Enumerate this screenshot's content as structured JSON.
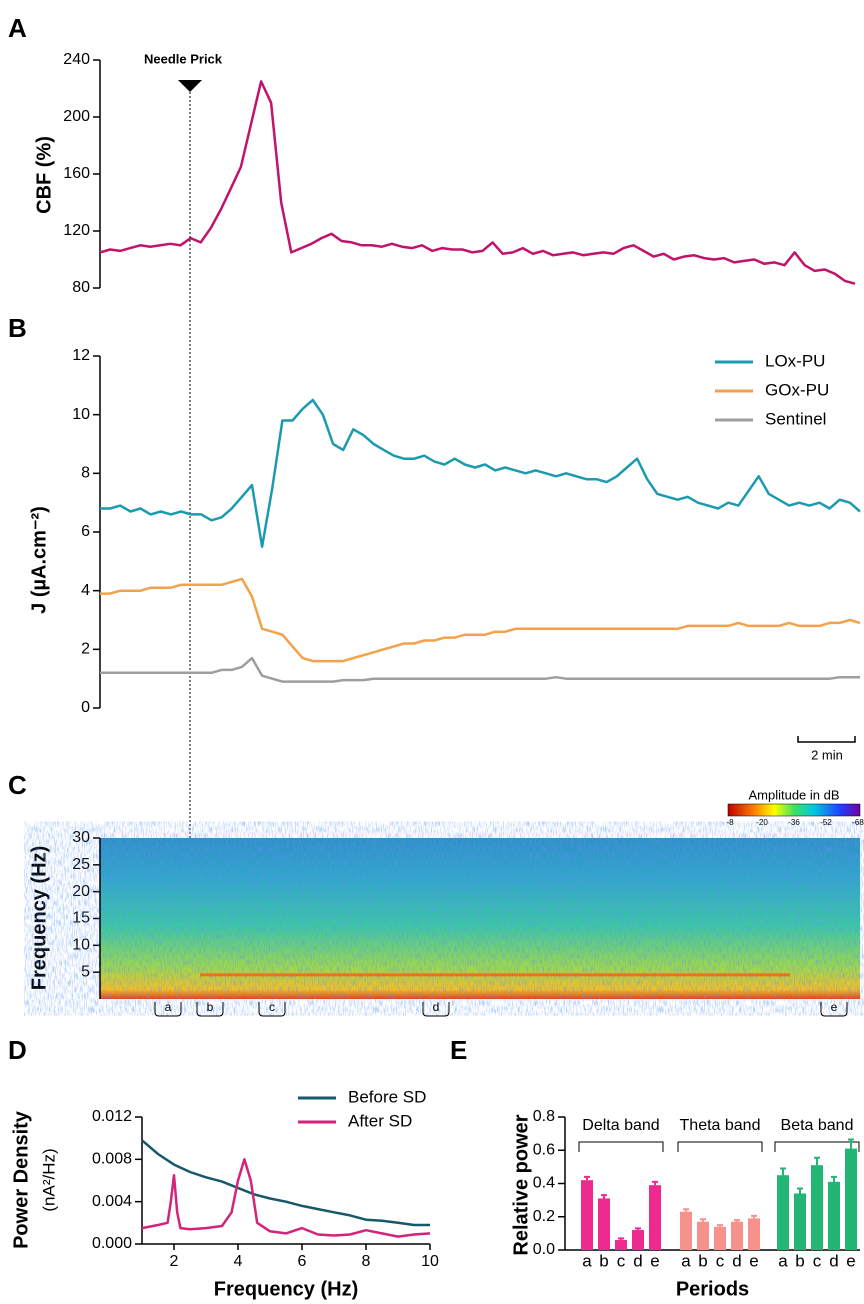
{
  "chart_data": [
    {
      "type": "line",
      "panel": "A",
      "ylabel": "CBF (%)",
      "annotation": "Needle Prick",
      "color": "#c0136b",
      "ylim": [
        80,
        240
      ],
      "yticks": [
        80,
        120,
        160,
        200,
        240
      ],
      "values": [
        105,
        107,
        106,
        108,
        110,
        109,
        110,
        111,
        110,
        115,
        112,
        122,
        135,
        150,
        165,
        195,
        225,
        210,
        140,
        105,
        108,
        111,
        115,
        118,
        113,
        112,
        110,
        110,
        109,
        111,
        109,
        108,
        110,
        106,
        108,
        107,
        107,
        105,
        106,
        112,
        104,
        105,
        108,
        104,
        106,
        103,
        104,
        105,
        103,
        104,
        105,
        104,
        108,
        110,
        106,
        102,
        104,
        100,
        102,
        103,
        101,
        100,
        101,
        98,
        99,
        100,
        97,
        98,
        96,
        105,
        96,
        92,
        93,
        90,
        85,
        83
      ]
    },
    {
      "type": "line",
      "panel": "B",
      "ylabel": "J (µA.cm⁻²)",
      "scale_bar": "2 min",
      "ylim": [
        0,
        12
      ],
      "yticks": [
        0,
        2,
        4,
        6,
        8,
        10,
        12
      ],
      "series": [
        {
          "name": "LOx-PU",
          "color": "#1c9aaf",
          "values": [
            6.8,
            6.8,
            6.9,
            6.7,
            6.8,
            6.6,
            6.7,
            6.6,
            6.7,
            6.6,
            6.6,
            6.4,
            6.5,
            6.8,
            7.2,
            7.6,
            5.5,
            7.5,
            9.8,
            9.8,
            10.2,
            10.5,
            10.0,
            9.0,
            8.8,
            9.5,
            9.3,
            9.0,
            8.8,
            8.6,
            8.5,
            8.5,
            8.6,
            8.4,
            8.3,
            8.5,
            8.3,
            8.2,
            8.3,
            8.1,
            8.2,
            8.1,
            8.0,
            8.1,
            8.0,
            7.9,
            8.0,
            7.9,
            7.8,
            7.8,
            7.7,
            7.9,
            8.2,
            8.5,
            7.8,
            7.3,
            7.2,
            7.1,
            7.2,
            7.0,
            6.9,
            6.8,
            7.0,
            6.9,
            7.4,
            7.9,
            7.3,
            7.1,
            6.9,
            7.0,
            6.9,
            7.0,
            6.8,
            7.1,
            7.0,
            6.7
          ]
        },
        {
          "name": "GOx-PU",
          "color": "#f4a14c",
          "values": [
            3.9,
            3.9,
            4.0,
            4.0,
            4.0,
            4.1,
            4.1,
            4.1,
            4.2,
            4.2,
            4.2,
            4.2,
            4.2,
            4.3,
            4.4,
            3.8,
            2.7,
            2.6,
            2.5,
            2.1,
            1.7,
            1.6,
            1.6,
            1.6,
            1.6,
            1.7,
            1.8,
            1.9,
            2.0,
            2.1,
            2.2,
            2.2,
            2.3,
            2.3,
            2.4,
            2.4,
            2.5,
            2.5,
            2.5,
            2.6,
            2.6,
            2.7,
            2.7,
            2.7,
            2.7,
            2.7,
            2.7,
            2.7,
            2.7,
            2.7,
            2.7,
            2.7,
            2.7,
            2.7,
            2.7,
            2.7,
            2.7,
            2.7,
            2.8,
            2.8,
            2.8,
            2.8,
            2.8,
            2.9,
            2.8,
            2.8,
            2.8,
            2.8,
            2.9,
            2.8,
            2.8,
            2.8,
            2.9,
            2.9,
            3.0,
            2.9
          ]
        },
        {
          "name": "Sentinel",
          "color": "#9e9e9e",
          "values": [
            1.2,
            1.2,
            1.2,
            1.2,
            1.2,
            1.2,
            1.2,
            1.2,
            1.2,
            1.2,
            1.2,
            1.2,
            1.3,
            1.3,
            1.4,
            1.7,
            1.1,
            1.0,
            0.9,
            0.9,
            0.9,
            0.9,
            0.9,
            0.9,
            0.95,
            0.95,
            0.95,
            1.0,
            1.0,
            1.0,
            1.0,
            1.0,
            1.0,
            1.0,
            1.0,
            1.0,
            1.0,
            1.0,
            1.0,
            1.0,
            1.0,
            1.0,
            1.0,
            1.0,
            1.0,
            1.05,
            1.0,
            1.0,
            1.0,
            1.0,
            1.0,
            1.0,
            1.0,
            1.0,
            1.0,
            1.0,
            1.0,
            1.0,
            1.0,
            1.0,
            1.0,
            1.0,
            1.0,
            1.0,
            1.0,
            1.0,
            1.0,
            1.0,
            1.0,
            1.0,
            1.0,
            1.0,
            1.0,
            1.05,
            1.05,
            1.05
          ]
        }
      ]
    },
    {
      "type": "spectrogram",
      "panel": "C",
      "ylabel": "Frequency (Hz)",
      "ylim": [
        0,
        30
      ],
      "yticks": [
        5,
        10,
        15,
        20,
        25,
        30
      ],
      "colorbar": {
        "label": "Amplitude in dB",
        "ticks": [
          -8,
          -20,
          -36,
          -52,
          -68
        ]
      },
      "periods": [
        "a",
        "b",
        "c",
        "d",
        "e"
      ]
    },
    {
      "type": "line",
      "panel": "D",
      "xlabel": "Frequency (Hz)",
      "ylabel": [
        "Power Density",
        "(nA²/Hz)"
      ],
      "xlim": [
        1,
        10
      ],
      "xticks": [
        2,
        4,
        6,
        8,
        10
      ],
      "ylim": [
        0,
        0.012
      ],
      "yticks": [
        {
          "value": 0,
          "label": "0.000"
        },
        0.004,
        0.008,
        0.012
      ],
      "series": [
        {
          "name": "Before SD",
          "color": "#17596a",
          "x": [
            1,
            1.5,
            2,
            2.5,
            3,
            3.5,
            4,
            4.5,
            5,
            5.5,
            6,
            6.5,
            7,
            7.5,
            8,
            8.5,
            9,
            9.5,
            10
          ],
          "values": [
            0.0098,
            0.0085,
            0.0075,
            0.0068,
            0.0063,
            0.0059,
            0.0053,
            0.0047,
            0.0043,
            0.004,
            0.0036,
            0.0033,
            0.003,
            0.0027,
            0.0023,
            0.0022,
            0.002,
            0.0018,
            0.0018
          ]
        },
        {
          "name": "After SD",
          "color": "#d3237b",
          "x": [
            1,
            1.5,
            1.8,
            1.9,
            2,
            2.1,
            2.2,
            2.5,
            3,
            3.5,
            3.8,
            4,
            4.2,
            4.4,
            4.6,
            5,
            5.5,
            6,
            6.5,
            7,
            7.5,
            8,
            8.5,
            9,
            9.5,
            10
          ],
          "values": [
            0.0015,
            0.0018,
            0.002,
            0.004,
            0.0065,
            0.003,
            0.0015,
            0.0014,
            0.0015,
            0.0017,
            0.003,
            0.006,
            0.008,
            0.006,
            0.002,
            0.0012,
            0.001,
            0.0015,
            0.0009,
            0.0008,
            0.0009,
            0.0013,
            0.001,
            0.0007,
            0.0009,
            0.001
          ]
        }
      ]
    },
    {
      "type": "bar",
      "panel": "E",
      "xlabel": "Periods",
      "ylabel": "Relative power",
      "ylim": [
        0,
        0.8
      ],
      "yticks": [
        {
          "value": 0,
          "label": "0.0"
        },
        0.2,
        0.4,
        0.6,
        0.8
      ],
      "categories": [
        "a",
        "b",
        "c",
        "d",
        "e"
      ],
      "series": [
        {
          "name": "Delta band",
          "color": "#ee2a90",
          "values": [
            0.42,
            0.31,
            0.06,
            0.12,
            0.39
          ],
          "errors": [
            0.02,
            0.02,
            0.01,
            0.01,
            0.02
          ]
        },
        {
          "name": "Theta band",
          "color": "#f7918b",
          "values": [
            0.23,
            0.17,
            0.14,
            0.17,
            0.19
          ],
          "errors": [
            0.015,
            0.015,
            0.01,
            0.01,
            0.015
          ]
        },
        {
          "name": "Beta band",
          "color": "#22b574",
          "values": [
            0.45,
            0.34,
            0.51,
            0.41,
            0.61
          ],
          "errors": [
            0.04,
            0.03,
            0.045,
            0.03,
            0.055
          ]
        }
      ]
    }
  ]
}
